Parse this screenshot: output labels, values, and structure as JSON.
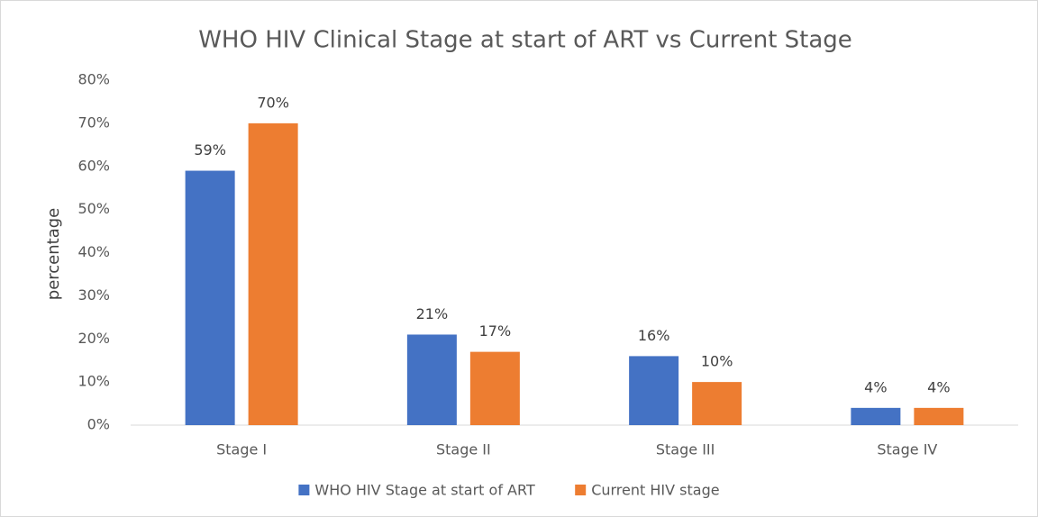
{
  "chart_data": {
    "type": "bar",
    "title": "WHO HIV Clinical Stage at start of ART vs Current Stage",
    "y_label": "percentage",
    "categories": [
      "Stage I",
      "Stage II",
      "Stage III",
      "Stage IV"
    ],
    "series": [
      {
        "name": "WHO HIV Stage at start of ART",
        "color": "#4472c4",
        "values": [
          59,
          21,
          16,
          4
        ],
        "value_labels": [
          "59%",
          "21%",
          "16%",
          "4%"
        ]
      },
      {
        "name": "Current HIV stage",
        "color": "#ed7d31",
        "values": [
          70,
          17,
          10,
          4
        ],
        "value_labels": [
          "70%",
          "17%",
          "10%",
          "4%"
        ]
      }
    ],
    "ylim": [
      0,
      80
    ],
    "yticks": [
      {
        "value": 0,
        "label": "0%"
      },
      {
        "value": 10,
        "label": "10%"
      },
      {
        "value": 20,
        "label": "20%"
      },
      {
        "value": 30,
        "label": "30%"
      },
      {
        "value": 40,
        "label": "40%"
      },
      {
        "value": 50,
        "label": "50%"
      },
      {
        "value": 60,
        "label": "60%"
      },
      {
        "value": 70,
        "label": "70%"
      },
      {
        "value": 80,
        "label": "80%"
      }
    ],
    "grid": false,
    "legend": "bottom"
  }
}
